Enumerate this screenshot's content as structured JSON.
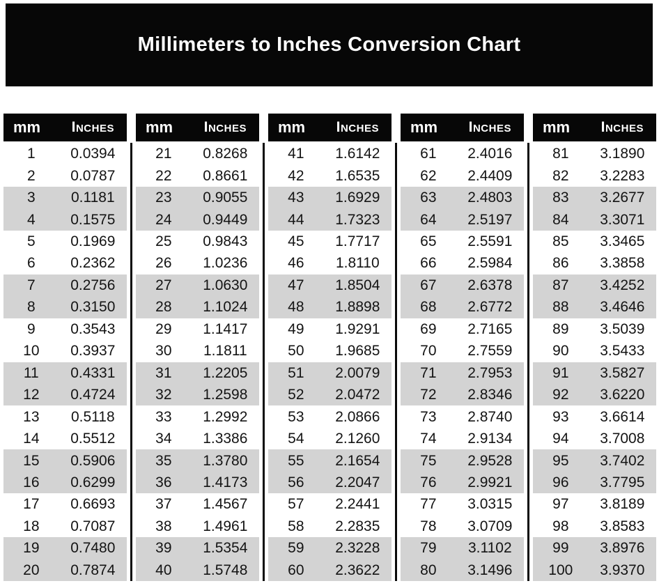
{
  "title": "Millimeters to Inches Conversion Chart",
  "colors": {
    "banner_background": "#070707",
    "header_background": "#070707",
    "header_text": "#ffffff",
    "stripe_gray": "#d3d3d3",
    "row_text": "#141414",
    "page_background": "#ffffff"
  },
  "chart_data": {
    "type": "table",
    "title": "Millimeters to Inches Conversion Chart",
    "columns": [
      "mm",
      "Inches"
    ],
    "layout": {
      "column_groups": 5,
      "rows_per_group": 20,
      "row_shading": "alternating pairs (2 white, 2 gray)"
    },
    "groups": [
      {
        "rows": [
          [
            "1",
            "0.0394"
          ],
          [
            "2",
            "0.0787"
          ],
          [
            "3",
            "0.1181"
          ],
          [
            "4",
            "0.1575"
          ],
          [
            "5",
            "0.1969"
          ],
          [
            "6",
            "0.2362"
          ],
          [
            "7",
            "0.2756"
          ],
          [
            "8",
            "0.3150"
          ],
          [
            "9",
            "0.3543"
          ],
          [
            "10",
            "0.3937"
          ],
          [
            "11",
            "0.4331"
          ],
          [
            "12",
            "0.4724"
          ],
          [
            "13",
            "0.5118"
          ],
          [
            "14",
            "0.5512"
          ],
          [
            "15",
            "0.5906"
          ],
          [
            "16",
            "0.6299"
          ],
          [
            "17",
            "0.6693"
          ],
          [
            "18",
            "0.7087"
          ],
          [
            "19",
            "0.7480"
          ],
          [
            "20",
            "0.7874"
          ]
        ]
      },
      {
        "rows": [
          [
            "21",
            "0.8268"
          ],
          [
            "22",
            "0.8661"
          ],
          [
            "23",
            "0.9055"
          ],
          [
            "24",
            "0.9449"
          ],
          [
            "25",
            "0.9843"
          ],
          [
            "26",
            "1.0236"
          ],
          [
            "27",
            "1.0630"
          ],
          [
            "28",
            "1.1024"
          ],
          [
            "29",
            "1.1417"
          ],
          [
            "30",
            "1.1811"
          ],
          [
            "31",
            "1.2205"
          ],
          [
            "32",
            "1.2598"
          ],
          [
            "33",
            "1.2992"
          ],
          [
            "34",
            "1.3386"
          ],
          [
            "35",
            "1.3780"
          ],
          [
            "36",
            "1.4173"
          ],
          [
            "37",
            "1.4567"
          ],
          [
            "38",
            "1.4961"
          ],
          [
            "39",
            "1.5354"
          ],
          [
            "40",
            "1.5748"
          ]
        ]
      },
      {
        "rows": [
          [
            "41",
            "1.6142"
          ],
          [
            "42",
            "1.6535"
          ],
          [
            "43",
            "1.6929"
          ],
          [
            "44",
            "1.7323"
          ],
          [
            "45",
            "1.7717"
          ],
          [
            "46",
            "1.8110"
          ],
          [
            "47",
            "1.8504"
          ],
          [
            "48",
            "1.8898"
          ],
          [
            "49",
            "1.9291"
          ],
          [
            "50",
            "1.9685"
          ],
          [
            "51",
            "2.0079"
          ],
          [
            "52",
            "2.0472"
          ],
          [
            "53",
            "2.0866"
          ],
          [
            "54",
            "2.1260"
          ],
          [
            "55",
            "2.1654"
          ],
          [
            "56",
            "2.2047"
          ],
          [
            "57",
            "2.2441"
          ],
          [
            "58",
            "2.2835"
          ],
          [
            "59",
            "2.3228"
          ],
          [
            "60",
            "2.3622"
          ]
        ]
      },
      {
        "rows": [
          [
            "61",
            "2.4016"
          ],
          [
            "62",
            "2.4409"
          ],
          [
            "63",
            "2.4803"
          ],
          [
            "64",
            "2.5197"
          ],
          [
            "65",
            "2.5591"
          ],
          [
            "66",
            "2.5984"
          ],
          [
            "67",
            "2.6378"
          ],
          [
            "68",
            "2.6772"
          ],
          [
            "69",
            "2.7165"
          ],
          [
            "70",
            "2.7559"
          ],
          [
            "71",
            "2.7953"
          ],
          [
            "72",
            "2.8346"
          ],
          [
            "73",
            "2.8740"
          ],
          [
            "74",
            "2.9134"
          ],
          [
            "75",
            "2.9528"
          ],
          [
            "76",
            "2.9921"
          ],
          [
            "77",
            "3.0315"
          ],
          [
            "78",
            "3.0709"
          ],
          [
            "79",
            "3.1102"
          ],
          [
            "80",
            "3.1496"
          ]
        ]
      },
      {
        "rows": [
          [
            "81",
            "3.1890"
          ],
          [
            "82",
            "3.2283"
          ],
          [
            "83",
            "3.2677"
          ],
          [
            "84",
            "3.3071"
          ],
          [
            "85",
            "3.3465"
          ],
          [
            "86",
            "3.3858"
          ],
          [
            "87",
            "3.4252"
          ],
          [
            "88",
            "3.4646"
          ],
          [
            "89",
            "3.5039"
          ],
          [
            "90",
            "3.5433"
          ],
          [
            "91",
            "3.5827"
          ],
          [
            "92",
            "3.6220"
          ],
          [
            "93",
            "3.6614"
          ],
          [
            "94",
            "3.7008"
          ],
          [
            "95",
            "3.7402"
          ],
          [
            "96",
            "3.7795"
          ],
          [
            "97",
            "3.8189"
          ],
          [
            "98",
            "3.8583"
          ],
          [
            "99",
            "3.8976"
          ],
          [
            "100",
            "3.9370"
          ]
        ]
      }
    ]
  }
}
